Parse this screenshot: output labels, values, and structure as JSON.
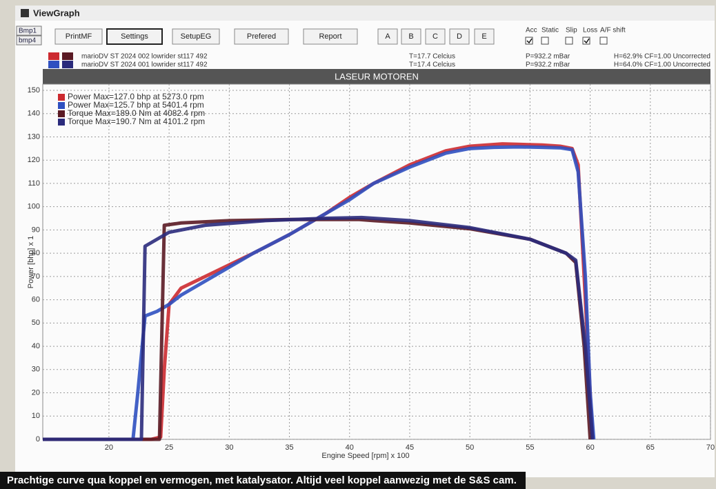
{
  "window": {
    "title": "ViewGraph",
    "tabs": [
      "Bmp1",
      "bmp4"
    ],
    "buttons": [
      "PrintMF",
      "Settings",
      "SetupEG",
      "Prefered",
      "Report",
      "A",
      "B",
      "C",
      "D",
      "E"
    ],
    "options": [
      {
        "label": "Acc",
        "checked": true
      },
      {
        "label": "Static",
        "checked": false
      },
      {
        "label": "Slip",
        "checked": false
      },
      {
        "label": "Loss",
        "checked": true
      },
      {
        "label": "A/F shift",
        "checked": false
      }
    ],
    "runs": [
      {
        "name": "marioDV ST 2024 002 lowrider st117   492",
        "temperature": "T=17.7 Celcius",
        "pressure": "P=932.2 mBar",
        "humidity": "H=62.9% CF=1.00 Uncorrected"
      },
      {
        "name": "marioDV ST 2024 001 lowrider st117   492",
        "temperature": "T=17.4 Celcius",
        "pressure": "P=932.2 mBar",
        "humidity": "H=64.0% CF=1.00 Uncorrected"
      }
    ],
    "banner": "LASEUR MOTOREN"
  },
  "chart_data": {
    "type": "line",
    "xlabel": "Engine Speed [rpm] x 100",
    "ylabel": "Power [bhp] x 1",
    "xlim": [
      14.5,
      70
    ],
    "xticks": [
      20,
      25,
      30,
      35,
      40,
      45,
      50,
      55,
      60,
      65,
      70
    ],
    "ylim": [
      0,
      150
    ],
    "yticks": [
      0,
      10,
      20,
      30,
      40,
      50,
      60,
      70,
      80,
      90,
      100,
      110,
      120,
      130,
      140,
      150
    ],
    "y2lim": [
      0,
      300
    ],
    "grid": true,
    "series": [
      {
        "name": "Power  Max=127.0 bhp at 5273.0 rpm",
        "color": "#cc2a30",
        "x": [
          14.5,
          22,
          23.5,
          24.3,
          24.6,
          25,
          26,
          28,
          30,
          32,
          35,
          38,
          40,
          42,
          45,
          48,
          50,
          52.7,
          54,
          56,
          57.5,
          58.5,
          59,
          59.5,
          60,
          60.2
        ],
        "values": [
          0,
          0,
          0,
          1,
          30,
          58,
          65,
          70,
          75,
          80,
          88,
          97,
          104,
          110,
          118,
          124,
          126,
          127,
          126.8,
          126.5,
          126,
          125,
          118,
          70,
          20,
          0
        ]
      },
      {
        "name": "Power  Max=125.7 bhp at 5401.4 rpm",
        "color": "#2f50c0",
        "x": [
          14.5,
          22,
          22.4,
          23,
          24,
          25,
          26,
          28,
          30,
          32,
          35,
          38,
          40,
          42,
          45,
          48,
          50,
          52,
          54,
          56,
          57.5,
          58.5,
          59,
          59.6,
          60,
          60.3
        ],
        "values": [
          0,
          0,
          20,
          53,
          55,
          58,
          62,
          68,
          74,
          80,
          88,
          97,
          103,
          110,
          117,
          123,
          125,
          125.5,
          125.7,
          125.5,
          125.3,
          124.5,
          115,
          70,
          20,
          0
        ]
      },
      {
        "name": "Torque  Max=189.0 Nm at 4082.4 rpm",
        "color": "#5a1a24",
        "axis": "y2",
        "x": [
          14.5,
          24.2,
          24.6,
          26,
          30,
          35,
          40.8,
          42,
          45,
          50,
          55,
          58,
          58.8,
          59.5,
          60
        ],
        "values": [
          0,
          0,
          184,
          186,
          188,
          189,
          189,
          188,
          186,
          181,
          172,
          160,
          152,
          80,
          0
        ]
      },
      {
        "name": "Torque  Max=190.7 Nm at 4101.2 rpm",
        "color": "#2b2b7c",
        "axis": "y2",
        "x": [
          14.5,
          22.7,
          23,
          24,
          25,
          28,
          33,
          38,
          41,
          45,
          50,
          55,
          58,
          58.8,
          59.6,
          60.2
        ],
        "values": [
          0,
          0,
          166,
          172,
          178,
          184,
          188,
          190,
          190.7,
          188,
          182,
          172,
          160,
          154,
          80,
          0
        ]
      }
    ]
  },
  "caption": "Prachtige curve qua koppel en vermogen, met katalysator. Altijd veel koppel aanwezig met de S&S cam."
}
